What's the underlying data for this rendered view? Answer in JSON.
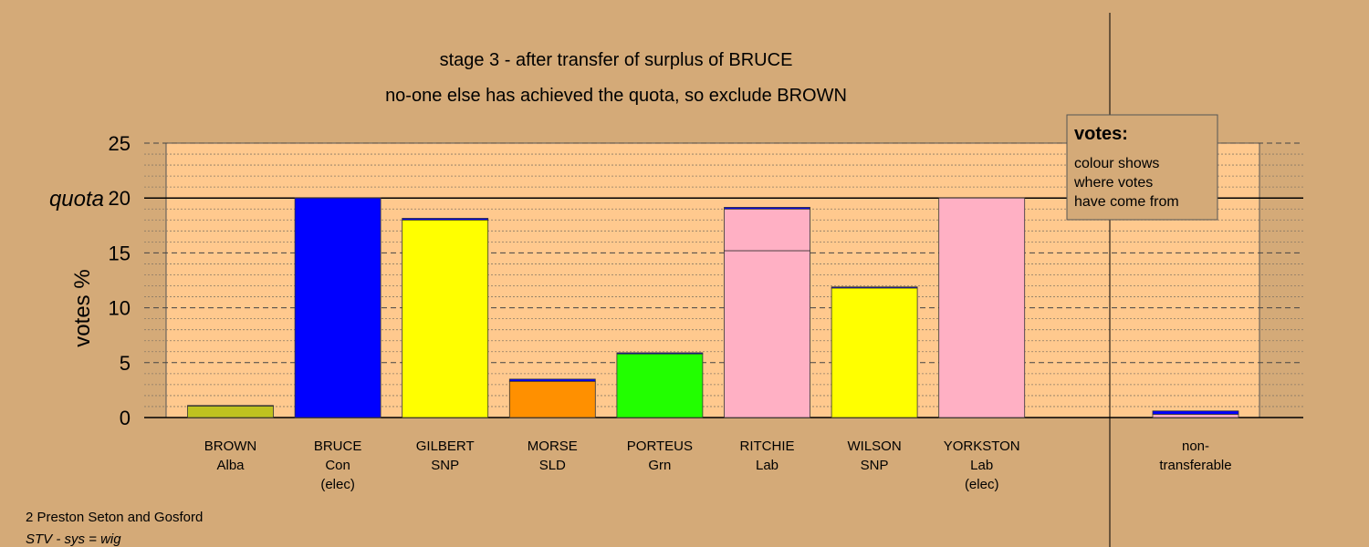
{
  "chart_data": {
    "type": "bar",
    "title": "stage 3 - after transfer of surplus of BRUCE",
    "subtitle": "no-one else has achieved the quota, so exclude BROWN",
    "ylabel": "votes %",
    "ylim": [
      0,
      25
    ],
    "yticks": [
      0,
      5,
      10,
      15,
      20,
      25
    ],
    "quota": 20,
    "quota_label": "quota",
    "grid": true,
    "legend": {
      "title": "votes:",
      "lines": [
        "colour shows",
        "where votes",
        "have come from"
      ],
      "placement": "top-right"
    },
    "candidates": [
      {
        "name": "BROWN",
        "party": "Alba",
        "note": "",
        "segments": [
          {
            "value": 1.05,
            "color": "#bfc21f"
          },
          {
            "value": 0.05,
            "color": "#0000ff"
          }
        ]
      },
      {
        "name": "BRUCE",
        "party": "Con",
        "note": "(elec)",
        "segments": [
          {
            "value": 20.0,
            "color": "#0000ff"
          }
        ]
      },
      {
        "name": "GILBERT",
        "party": "SNP",
        "note": "",
        "segments": [
          {
            "value": 18.0,
            "color": "#ffff00"
          },
          {
            "value": 0.15,
            "color": "#0000ff"
          }
        ]
      },
      {
        "name": "MORSE",
        "party": "SLD",
        "note": "",
        "segments": [
          {
            "value": 3.3,
            "color": "#ff9000"
          },
          {
            "value": 0.2,
            "color": "#0000ff"
          }
        ]
      },
      {
        "name": "PORTEUS",
        "party": "Grn",
        "note": "",
        "segments": [
          {
            "value": 5.8,
            "color": "#22ff00"
          },
          {
            "value": 0.1,
            "color": "#0000ff"
          }
        ]
      },
      {
        "name": "RITCHIE",
        "party": "Lab",
        "note": "",
        "segments": [
          {
            "value": 15.2,
            "color": "#ffb0c4"
          },
          {
            "value": 3.8,
            "color": "#ffb0c4"
          },
          {
            "value": 0.15,
            "color": "#0000ff"
          }
        ]
      },
      {
        "name": "WILSON",
        "party": "SNP",
        "note": "",
        "segments": [
          {
            "value": 11.8,
            "color": "#ffff00"
          },
          {
            "value": 0.1,
            "color": "#0000ff"
          }
        ]
      },
      {
        "name": "YORKSTON",
        "party": "Lab",
        "note": "(elec)",
        "segments": [
          {
            "value": 20.0,
            "color": "#ffb0c4"
          }
        ]
      }
    ],
    "nontransferable": {
      "label_line1": "non-",
      "label_line2": "transferable",
      "segments": [
        {
          "value": 0.3,
          "color": "#ffb0c4"
        },
        {
          "value": 0.3,
          "color": "#0000ff"
        }
      ]
    }
  },
  "footer": {
    "ward": "2 Preston Seton and Gosford",
    "system": "STV - sys = wig"
  }
}
